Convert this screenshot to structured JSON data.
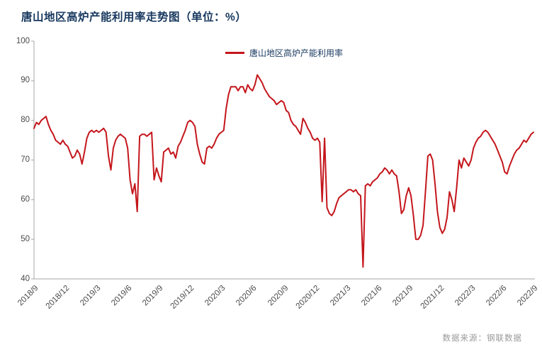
{
  "title": "唐山地区高炉产能利用率走势图（单位：%）",
  "legend": "唐山地区高炉产能利用率",
  "source": "数据来源：钢联数据",
  "colors": {
    "line": "#C4161C",
    "title": "#17375E",
    "axis": "#A6A6A6",
    "tick_label": "#4a4a4a",
    "source_text": "#9a9a9a",
    "background": "#FFFFFF"
  },
  "chart_data": {
    "type": "line",
    "title": "唐山地区高炉产能利用率走势图（单位：%）",
    "series_name": "唐山地区高炉产能利用率",
    "legend_position": "top-center",
    "grid": false,
    "ylim": [
      40,
      100
    ],
    "y_ticks": [
      100,
      90,
      80,
      70,
      60,
      50,
      40
    ],
    "x_tick_labels": [
      "2018/9",
      "2018/12",
      "2019/3",
      "2019/6",
      "2019/9",
      "2019/12",
      "2020/3",
      "2020/6",
      "2020/9",
      "2020/12",
      "2021/3",
      "2021/6",
      "2021/9",
      "2021/12",
      "2022/3",
      "2022/6",
      "2022/9"
    ],
    "x_frequency": "weekly",
    "values": [
      78,
      79.5,
      79,
      80,
      80.5,
      81,
      79,
      77.5,
      76.5,
      75,
      74.5,
      74,
      75,
      74,
      73.5,
      72,
      70.5,
      71,
      72.5,
      71.5,
      69,
      72,
      75.5,
      77,
      77.5,
      77,
      77.5,
      77,
      77.5,
      78,
      77,
      71,
      67.5,
      73,
      75,
      76,
      76.5,
      76,
      75.5,
      73,
      65,
      61.5,
      64,
      57,
      76,
      76.5,
      76.5,
      76,
      76.5,
      77,
      65,
      68,
      66,
      64.5,
      72,
      72.5,
      73,
      71.5,
      72,
      70.5,
      73.5,
      74.5,
      76,
      77.5,
      79.5,
      80,
      79.5,
      78.5,
      74,
      71.5,
      69.5,
      69,
      73,
      73.5,
      73,
      74,
      75.5,
      76.5,
      77,
      77.5,
      83,
      86.5,
      88.5,
      88.5,
      88.5,
      87.5,
      88.5,
      88.5,
      87,
      89,
      88,
      87.5,
      89,
      91.5,
      90.5,
      89.5,
      88,
      87,
      86,
      85.5,
      85,
      84,
      84.5,
      85,
      84.5,
      82.5,
      82,
      80,
      79,
      78.5,
      77.5,
      76.5,
      80.5,
      79.5,
      78,
      77,
      75.5,
      75,
      75.5,
      74.5,
      59.5,
      75.5,
      58,
      56.5,
      56,
      57,
      59,
      60.5,
      61,
      61.5,
      62,
      62.5,
      62.5,
      62,
      62.5,
      61.5,
      61,
      43,
      63.5,
      64,
      63.5,
      64.5,
      65,
      65.5,
      66.5,
      67,
      68,
      67.5,
      66.5,
      67.5,
      66.5,
      66,
      62,
      56.5,
      57.5,
      61,
      63,
      61,
      56,
      50,
      50,
      51,
      53.5,
      62,
      71,
      71.5,
      70,
      64,
      57,
      53,
      51.5,
      52.5,
      55.5,
      62,
      60,
      57,
      63,
      70,
      68,
      70.5,
      69.5,
      68.5,
      70,
      73,
      74.5,
      75.5,
      76,
      77,
      77.5,
      77,
      76,
      75,
      74,
      72.5,
      71,
      69.5,
      67,
      66.5,
      68.5,
      70,
      71.5,
      72.5,
      73,
      74,
      75,
      74.5,
      75.5,
      76.5,
      77
    ]
  }
}
